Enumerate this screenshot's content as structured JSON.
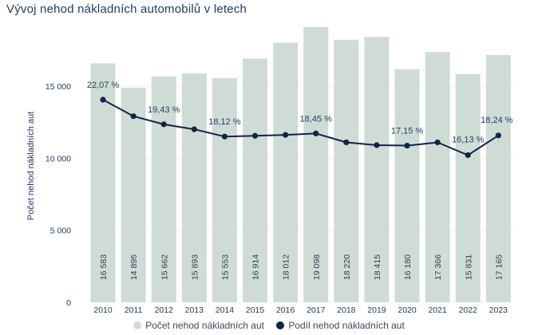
{
  "chart_data": {
    "type": "bar+line",
    "title": "Vývoj nehod nákladních automobilů v letech",
    "ylabel": "Počet nehod nákladních aut",
    "xlabel": "",
    "ylim": [
      0,
      19098
    ],
    "yticks": [
      0,
      5000,
      10000,
      15000
    ],
    "ytick_labels": [
      "0",
      "5 000",
      "10 000",
      "15 000"
    ],
    "categories": [
      "2010",
      "2011",
      "2012",
      "2013",
      "2014",
      "2015",
      "2016",
      "2017",
      "2018",
      "2019",
      "2020",
      "2021",
      "2022",
      "2023"
    ],
    "series": [
      {
        "name": "Počet nehod nákladních aut",
        "type": "bar",
        "color": "#cfdcd6",
        "values": [
          16583,
          14895,
          15662,
          15893,
          15553,
          16914,
          18012,
          19098,
          18220,
          18415,
          16180,
          17366,
          15831,
          17165
        ],
        "labels": [
          "16 583",
          "14 895",
          "15 662",
          "15 893",
          "15 553",
          "16 914",
          "18 012",
          "19 098",
          "18 220",
          "18 415",
          "16 180",
          "17 366",
          "15 831",
          "17 165"
        ]
      },
      {
        "name": "Podíl nehod nákladních aut",
        "type": "line",
        "color": "#0f2547",
        "values_percent": [
          22.07,
          20.3,
          19.43,
          18.9,
          18.12,
          18.2,
          18.3,
          18.45,
          17.5,
          17.2,
          17.15,
          17.5,
          16.13,
          18.24
        ]
      }
    ],
    "point_labels": [
      {
        "index": 0,
        "text": "22,07 %"
      },
      {
        "index": 2,
        "text": "19,43 %"
      },
      {
        "index": 4,
        "text": "18,12 %"
      },
      {
        "index": 7,
        "text": "18,45 %"
      },
      {
        "index": 10,
        "text": "17,15 %"
      },
      {
        "index": 12,
        "text": "16,13 %"
      },
      {
        "index": 13,
        "text": "18,24 %"
      }
    ],
    "legend": {
      "position": "bottom"
    }
  }
}
